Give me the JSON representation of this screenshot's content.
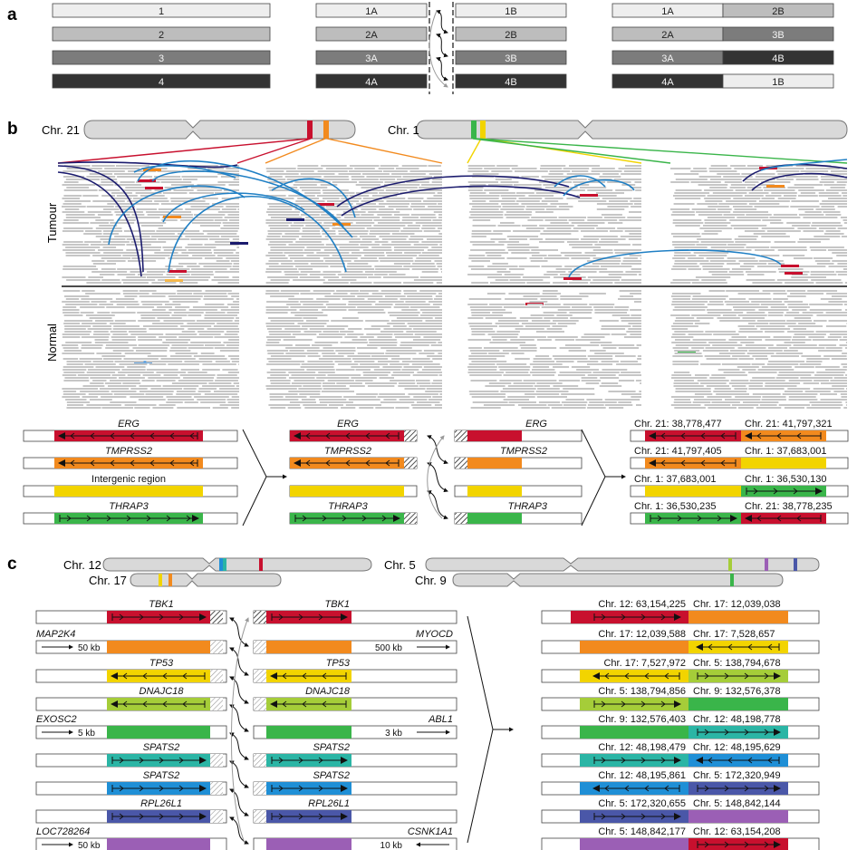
{
  "colors": {
    "red": "#c8102e",
    "orange": "#f28a1e",
    "yellow": "#f2d400",
    "green": "#3ab54a",
    "lime": "#a5cd39",
    "teal": "#2bb5a5",
    "blue": "#1f8fd6",
    "indigo": "#4a57a8",
    "purple": "#9b5fb5",
    "navy": "#1b1b6e",
    "arc_blue": "#1f7fc4",
    "grey1": "#eeeeee",
    "grey2": "#bdbdbd",
    "grey3": "#7c7c7c",
    "grey4": "#333333",
    "read_grey": "#c6c6c6"
  },
  "panel_a": {
    "letter": "a",
    "left": [
      "1",
      "2",
      "3",
      "4"
    ],
    "mid_left": [
      "1A",
      "2A",
      "3A",
      "4A"
    ],
    "mid_right": [
      "1B",
      "2B",
      "3B",
      "4B"
    ],
    "result_left": [
      "1A",
      "2A",
      "3A",
      "4A"
    ],
    "result_right": [
      "2B",
      "3B",
      "4B",
      "1B"
    ]
  },
  "panel_b": {
    "letter": "b",
    "chr21_label": "Chr. 21",
    "chr1_label": "Chr. 1",
    "tumour_label": "Tumour",
    "normal_label": "Normal",
    "genes": [
      "ERG",
      "TMPRSS2",
      "Intergenic region",
      "THRAP3"
    ],
    "mid_genes_left": [
      "ERG",
      "TMPRSS2",
      "THRAP3"
    ],
    "mid_genes_right": [
      "ERG",
      "TMPRSS2",
      "THRAP3"
    ],
    "junctions": [
      {
        "left": "Chr. 21: 38,778,477",
        "right": "Chr. 21: 41,797,321"
      },
      {
        "left": "Chr. 21: 41,797,405",
        "right": "Chr. 1: 37,683,001"
      },
      {
        "left": "Chr. 1: 37,683,001",
        "right": "Chr. 1: 36,530,130"
      },
      {
        "left": "Chr. 1: 36,530,235",
        "right": "Chr. 21: 38,778,235"
      }
    ]
  },
  "panel_c": {
    "letter": "c",
    "chr12_label": "Chr. 12",
    "chr17_label": "Chr. 17",
    "chr5_label": "Chr. 5",
    "chr9_label": "Chr. 9",
    "left_rows": [
      {
        "gene": "TBK1",
        "flank": "",
        "scale": ""
      },
      {
        "gene": "",
        "flank": "MAP2K4",
        "scale": "50 kb"
      },
      {
        "gene": "TP53",
        "flank": "",
        "scale": ""
      },
      {
        "gene": "DNAJC18",
        "flank": "",
        "scale": ""
      },
      {
        "gene": "",
        "flank": "EXOSC2",
        "scale": "5 kb"
      },
      {
        "gene": "SPATS2",
        "flank": "",
        "scale": ""
      },
      {
        "gene": "SPATS2",
        "flank": "",
        "scale": ""
      },
      {
        "gene": "RPL26L1",
        "flank": "",
        "scale": ""
      },
      {
        "gene": "",
        "flank": "LOC728264",
        "scale": "50 kb"
      }
    ],
    "right_rows": [
      {
        "gene": "TBK1",
        "flank": "",
        "scale": ""
      },
      {
        "gene": "",
        "flank": "MYOCD",
        "scale": "500 kb"
      },
      {
        "gene": "TP53",
        "flank": "",
        "scale": ""
      },
      {
        "gene": "DNAJC18",
        "flank": "",
        "scale": ""
      },
      {
        "gene": "",
        "flank": "ABL1",
        "scale": "3 kb"
      },
      {
        "gene": "SPATS2",
        "flank": "",
        "scale": ""
      },
      {
        "gene": "SPATS2",
        "flank": "",
        "scale": ""
      },
      {
        "gene": "RPL26L1",
        "flank": "",
        "scale": ""
      },
      {
        "gene": "",
        "flank": "CSNK1A1",
        "scale": "10 kb"
      }
    ],
    "junctions": [
      {
        "left": "Chr. 12: 63,154,225",
        "right": "Chr. 17: 12,039,038"
      },
      {
        "left": "Chr. 17: 12,039,588",
        "right": "Chr. 17: 7,528,657"
      },
      {
        "left": "Chr. 17: 7,527,972",
        "right": "Chr. 5: 138,794,678"
      },
      {
        "left": "Chr. 5: 138,794,856",
        "right": "Chr. 9: 132,576,378"
      },
      {
        "left": "Chr. 9: 132,576,403",
        "right": "Chr. 12: 48,198,778"
      },
      {
        "left": "Chr. 12: 48,198,479",
        "right": "Chr. 12: 48,195,629"
      },
      {
        "left": "Chr. 12: 48,195,861",
        "right": "Chr. 5: 172,320,949"
      },
      {
        "left": "Chr. 5: 172,320,655",
        "right": "Chr. 5: 148,842,144"
      },
      {
        "left": "Chr. 5: 148,842,177",
        "right": "Chr. 12: 63,154,208"
      }
    ]
  }
}
